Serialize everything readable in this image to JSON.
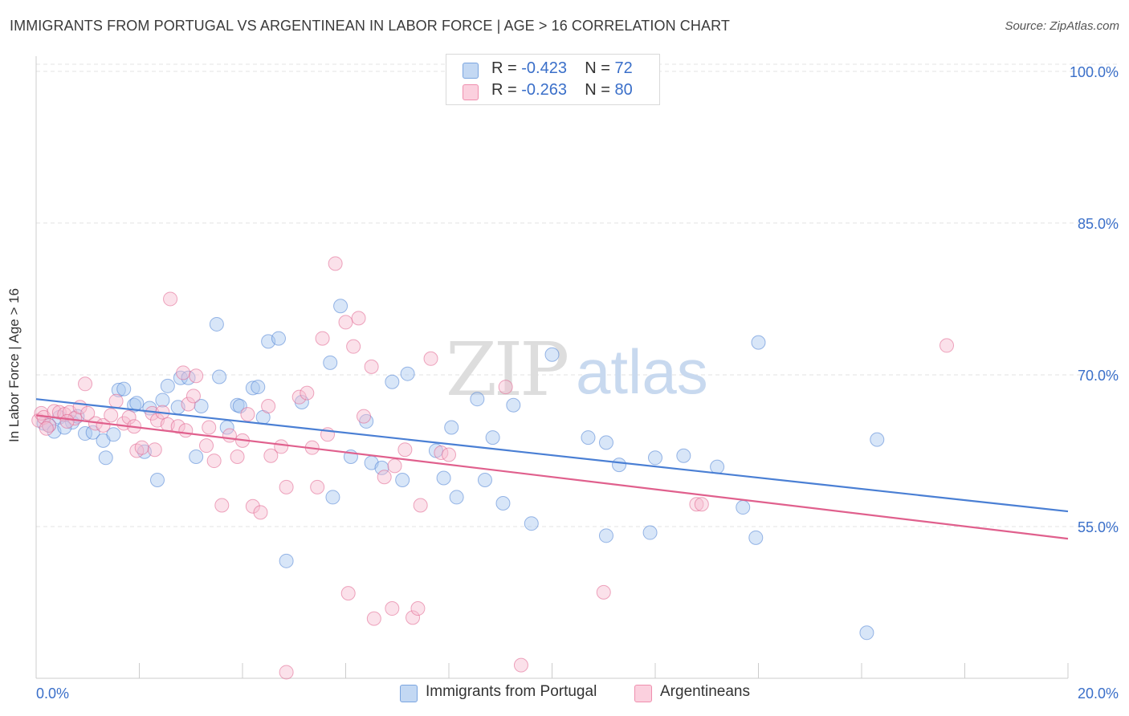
{
  "title": "IMMIGRANTS FROM PORTUGAL VS ARGENTINEAN IN LABOR FORCE | AGE > 16 CORRELATION CHART",
  "source": "Source: ZipAtlas.com",
  "watermark": {
    "zip": "ZIP",
    "atlas": "atlas"
  },
  "stats": [
    {
      "r_label": "R =",
      "r_value": "-0.423",
      "n_label": "N =",
      "n_value": "72",
      "color": "#9dbfe8"
    },
    {
      "r_label": "R =",
      "r_value": "-0.263",
      "n_label": "N =",
      "n_value": "80",
      "color": "#f4a9c0"
    }
  ],
  "legend": [
    {
      "label": "Immigrants from Portugal",
      "color": "#9dbfe8"
    },
    {
      "label": "Argentineans",
      "color": "#f4a9c0"
    }
  ],
  "chart_data": {
    "type": "scatter",
    "xlabel": "",
    "ylabel": "In Labor Force | Age > 16",
    "xlim": [
      0,
      20
    ],
    "ylim": [
      40,
      101.5
    ],
    "x_tick_labels": [
      "0.0%",
      "20.0%"
    ],
    "y_ticks": [
      55,
      70,
      85,
      100
    ],
    "y_tick_labels": [
      "55.0%",
      "70.0%",
      "85.0%",
      "100.0%"
    ],
    "grid": true,
    "legend_position": "bottom",
    "series": [
      {
        "name": "Immigrants from Portugal",
        "color": "#4a7fd4",
        "fill": "#a9c8ef",
        "trend": {
          "x": [
            0,
            20
          ],
          "y": [
            67.6,
            56.5
          ]
        },
        "points": [
          [
            0.15,
            65.2
          ],
          [
            0.25,
            65.0
          ],
          [
            0.35,
            64.4
          ],
          [
            0.45,
            65.8
          ],
          [
            0.7,
            65.3
          ],
          [
            0.8,
            65.9
          ],
          [
            0.95,
            64.2
          ],
          [
            1.1,
            64.3
          ],
          [
            1.3,
            63.5
          ],
          [
            1.35,
            61.8
          ],
          [
            1.6,
            68.5
          ],
          [
            1.7,
            68.6
          ],
          [
            1.9,
            67.0
          ],
          [
            1.95,
            67.2
          ],
          [
            2.1,
            62.4
          ],
          [
            2.2,
            66.7
          ],
          [
            2.35,
            59.6
          ],
          [
            2.45,
            67.5
          ],
          [
            2.55,
            68.9
          ],
          [
            2.75,
            66.8
          ],
          [
            2.8,
            69.7
          ],
          [
            2.95,
            69.7
          ],
          [
            3.1,
            61.9
          ],
          [
            3.2,
            66.9
          ],
          [
            3.5,
            75.0
          ],
          [
            3.55,
            69.8
          ],
          [
            3.7,
            64.8
          ],
          [
            3.9,
            67.0
          ],
          [
            3.95,
            66.9
          ],
          [
            4.2,
            68.7
          ],
          [
            4.3,
            68.8
          ],
          [
            4.4,
            65.8
          ],
          [
            4.5,
            73.3
          ],
          [
            4.7,
            73.6
          ],
          [
            4.85,
            51.6
          ],
          [
            5.15,
            67.3
          ],
          [
            5.7,
            71.2
          ],
          [
            5.75,
            57.9
          ],
          [
            5.9,
            76.8
          ],
          [
            6.1,
            61.9
          ],
          [
            6.4,
            65.4
          ],
          [
            6.5,
            61.3
          ],
          [
            6.7,
            60.8
          ],
          [
            6.9,
            69.3
          ],
          [
            7.1,
            59.6
          ],
          [
            7.2,
            70.1
          ],
          [
            7.75,
            62.5
          ],
          [
            7.9,
            59.8
          ],
          [
            8.05,
            64.8
          ],
          [
            8.15,
            57.9
          ],
          [
            8.55,
            67.6
          ],
          [
            8.7,
            59.6
          ],
          [
            8.85,
            63.8
          ],
          [
            9.05,
            57.3
          ],
          [
            9.25,
            67.0
          ],
          [
            9.6,
            55.3
          ],
          [
            10.0,
            72.0
          ],
          [
            10.7,
            63.8
          ],
          [
            11.05,
            54.1
          ],
          [
            11.05,
            63.3
          ],
          [
            11.3,
            61.1
          ],
          [
            11.9,
            54.4
          ],
          [
            12.0,
            61.8
          ],
          [
            12.55,
            62.0
          ],
          [
            13.2,
            60.9
          ],
          [
            13.7,
            56.9
          ],
          [
            13.95,
            53.9
          ],
          [
            14.0,
            73.2
          ],
          [
            16.1,
            44.5
          ],
          [
            16.3,
            63.6
          ],
          [
            0.55,
            64.8
          ],
          [
            1.5,
            64.1
          ]
        ]
      },
      {
        "name": "Argentineans",
        "color": "#e0608d",
        "fill": "#f7bdd0",
        "trend": {
          "x": [
            0,
            20
          ],
          "y": [
            66.0,
            53.8
          ]
        },
        "points": [
          [
            0.05,
            65.5
          ],
          [
            0.1,
            66.2
          ],
          [
            0.15,
            65.8
          ],
          [
            0.25,
            65.0
          ],
          [
            0.35,
            66.4
          ],
          [
            0.45,
            66.3
          ],
          [
            0.55,
            66.1
          ],
          [
            0.65,
            66.3
          ],
          [
            0.75,
            65.7
          ],
          [
            0.85,
            66.8
          ],
          [
            0.95,
            69.1
          ],
          [
            1.15,
            65.2
          ],
          [
            1.3,
            65.0
          ],
          [
            1.45,
            66.0
          ],
          [
            1.55,
            67.4
          ],
          [
            1.7,
            65.2
          ],
          [
            1.8,
            65.8
          ],
          [
            1.95,
            62.5
          ],
          [
            2.05,
            62.8
          ],
          [
            2.25,
            66.2
          ],
          [
            2.35,
            65.5
          ],
          [
            2.45,
            66.3
          ],
          [
            2.55,
            65.1
          ],
          [
            2.6,
            77.5
          ],
          [
            2.75,
            64.9
          ],
          [
            2.85,
            70.2
          ],
          [
            2.95,
            67.1
          ],
          [
            3.05,
            67.9
          ],
          [
            3.1,
            69.9
          ],
          [
            3.3,
            63.0
          ],
          [
            3.35,
            64.8
          ],
          [
            3.45,
            61.5
          ],
          [
            3.6,
            57.1
          ],
          [
            3.75,
            64.0
          ],
          [
            3.9,
            61.9
          ],
          [
            4.1,
            66.1
          ],
          [
            4.2,
            57.0
          ],
          [
            4.35,
            56.4
          ],
          [
            4.5,
            66.9
          ],
          [
            4.55,
            62.0
          ],
          [
            4.75,
            62.9
          ],
          [
            4.85,
            58.9
          ],
          [
            5.1,
            67.8
          ],
          [
            5.25,
            68.2
          ],
          [
            5.35,
            62.8
          ],
          [
            5.45,
            58.9
          ],
          [
            5.55,
            73.6
          ],
          [
            5.65,
            64.1
          ],
          [
            5.8,
            81.0
          ],
          [
            6.0,
            75.2
          ],
          [
            6.15,
            72.8
          ],
          [
            6.25,
            75.6
          ],
          [
            6.35,
            65.9
          ],
          [
            6.5,
            70.8
          ],
          [
            6.75,
            59.9
          ],
          [
            6.95,
            61.0
          ],
          [
            7.15,
            62.6
          ],
          [
            7.45,
            57.1
          ],
          [
            7.65,
            71.6
          ],
          [
            7.85,
            62.3
          ],
          [
            8.0,
            62.1
          ],
          [
            9.1,
            68.8
          ],
          [
            11.0,
            48.5
          ],
          [
            12.8,
            57.2
          ],
          [
            12.9,
            57.2
          ],
          [
            17.65,
            72.9
          ],
          [
            6.05,
            48.4
          ],
          [
            6.55,
            45.9
          ],
          [
            6.9,
            46.9
          ],
          [
            7.3,
            46.0
          ],
          [
            7.4,
            46.9
          ],
          [
            4.85,
            40.6
          ],
          [
            9.4,
            41.3
          ],
          [
            0.6,
            65.4
          ],
          [
            0.2,
            64.7
          ],
          [
            1.0,
            66.2
          ],
          [
            1.9,
            64.9
          ],
          [
            2.3,
            62.6
          ],
          [
            2.9,
            64.5
          ],
          [
            4.0,
            63.5
          ]
        ]
      }
    ]
  }
}
